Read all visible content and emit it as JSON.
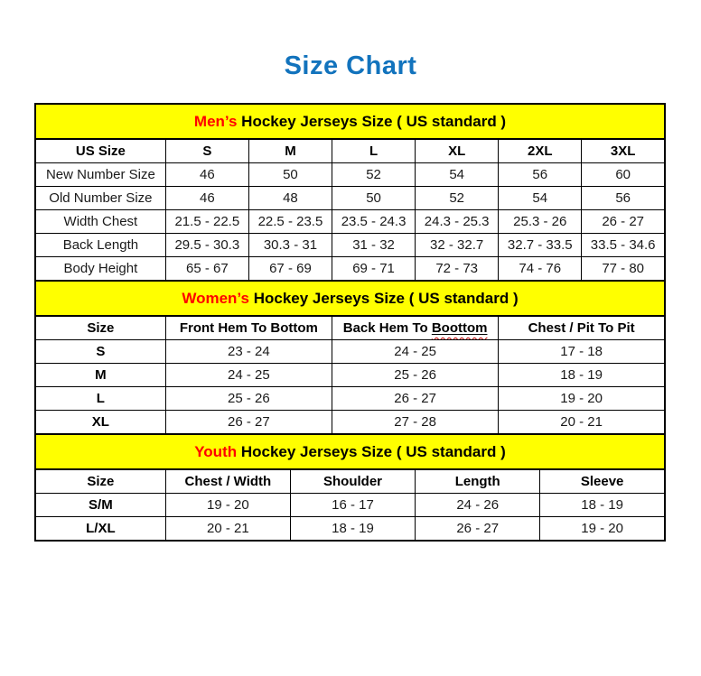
{
  "title": "Size Chart",
  "colors": {
    "title_blue": "#1273BD",
    "band_yellow": "#FFFF00",
    "highlight_red": "#FF0000",
    "border_black": "#000000"
  },
  "tables": [
    {
      "id": "mens",
      "heading": {
        "highlight": "Men’s",
        "rest": " Hockey Jerseys Size ( US standard )"
      },
      "columns": [
        "US Size",
        "S",
        "M",
        "L",
        "XL",
        "2XL",
        "3XL"
      ],
      "bold_row_labels": false,
      "rows": [
        {
          "label": "New Number Size",
          "values": [
            "46",
            "50",
            "52",
            "54",
            "56",
            "60"
          ]
        },
        {
          "label": "Old Number Size",
          "values": [
            "46",
            "48",
            "50",
            "52",
            "54",
            "56"
          ]
        },
        {
          "label": "Width Chest",
          "values": [
            "21.5 - 22.5",
            "22.5 - 23.5",
            "23.5 - 24.3",
            "24.3 - 25.3",
            "25.3 - 26",
            "26 - 27"
          ]
        },
        {
          "label": "Back Length",
          "values": [
            "29.5 - 30.3",
            "30.3 - 31",
            "31 - 32",
            "32 - 32.7",
            "32.7 - 33.5",
            "33.5 - 34.6"
          ]
        },
        {
          "label": "Body Height",
          "values": [
            "65 - 67",
            "67 - 69",
            "69 - 71",
            "72 - 73",
            "74 - 76",
            "77 - 80"
          ]
        }
      ]
    },
    {
      "id": "womens",
      "heading": {
        "highlight": "Women’s",
        "rest": " Hockey Jerseys Size ( US standard )"
      },
      "columns": [
        "Size",
        "Front Hem To Bottom",
        "Back Hem To Boottom",
        "Chest / Pit To Pit"
      ],
      "misspelled_column_index": 2,
      "misspelled_word": "Boottom",
      "bold_row_labels": true,
      "rows": [
        {
          "label": "S",
          "values": [
            "23 - 24",
            "24 - 25",
            "17 - 18"
          ]
        },
        {
          "label": "M",
          "values": [
            "24 - 25",
            "25 - 26",
            "18 - 19"
          ]
        },
        {
          "label": "L",
          "values": [
            "25 - 26",
            "26 - 27",
            "19 - 20"
          ]
        },
        {
          "label": "XL",
          "values": [
            "26 - 27",
            "27 - 28",
            "20 - 21"
          ]
        }
      ]
    },
    {
      "id": "youth",
      "heading": {
        "highlight": "Youth",
        "rest": " Hockey Jerseys Size ( US standard )"
      },
      "columns": [
        "Size",
        "Chest / Width",
        "Shoulder",
        "Length",
        "Sleeve"
      ],
      "bold_row_labels": true,
      "rows": [
        {
          "label": "S/M",
          "values": [
            "19 - 20",
            "16 - 17",
            "24 - 26",
            "18 - 19"
          ]
        },
        {
          "label": "L/XL",
          "values": [
            "20 - 21",
            "18 - 19",
            "26 - 27",
            "19 - 20"
          ]
        }
      ]
    }
  ]
}
